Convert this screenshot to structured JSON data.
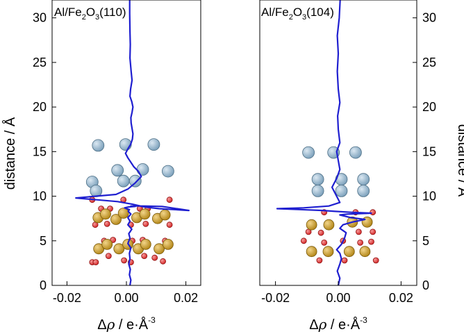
{
  "colors": {
    "curve": "#1f1fd0",
    "al_atom": "#7fa3bd",
    "fe_atom": "#b5891c",
    "o_atom": "#d62a2a"
  },
  "chart_data": [
    {
      "type": "line",
      "panel": "left",
      "title_parts": [
        "Al/Fe",
        "2",
        "O",
        "3",
        "(110)"
      ],
      "xlabel_parts": [
        "Δ",
        "ρ",
        " / e·Å",
        "-3"
      ],
      "ylabel": "distance / Å",
      "xlim": [
        -0.025,
        0.025
      ],
      "ylim": [
        0,
        32
      ],
      "xticks": [
        -0.02,
        0.0,
        0.02
      ],
      "xtick_labels": [
        "-0.02",
        "0.00",
        "0.02"
      ],
      "yticks": [
        0,
        5,
        10,
        15,
        20,
        25,
        30
      ],
      "ytick_labels": [
        "0",
        "5",
        "10",
        "15",
        "20",
        "25",
        "30"
      ],
      "ytick_side": "left",
      "series": [
        {
          "x": [
            0.0012,
            0.0015,
            0.001,
            0.0013,
            0.0008,
            0.0012,
            0.001,
            0.0015,
            0.0005,
            0.0012,
            0.0008,
            0.0018,
            0.0005,
            0.0012,
            0.0005,
            0.0015,
            0.0006,
            0.001,
            0.0,
            -0.0006,
            0.0008,
            0.003,
            0.0015,
            0.006,
            0.012,
            0.021,
            0.011,
            0.006,
            0.002,
            -0.003,
            -0.01,
            -0.017,
            -0.0035,
            0.0005,
            0.003,
            0.005,
            0.004,
            0.0025,
            0.0015,
            0.0005,
            -0.0003,
            0.0005,
            0.0014,
            0.002,
            0.0022,
            0.0019,
            0.0016,
            0.0015,
            0.0019,
            0.0022,
            0.0018,
            0.0012,
            0.0014,
            0.0019,
            0.0016,
            0.0012,
            0.0013,
            0.0012,
            0.0011,
            0.0011
          ],
          "y": [
            0.0,
            0.6,
            1.2,
            1.8,
            2.4,
            3.0,
            3.6,
            4.2,
            4.7,
            5.3,
            5.8,
            6.3,
            6.8,
            7.2,
            7.6,
            8.0,
            8.3,
            8.5,
            8.6,
            8.7,
            8.8,
            8.85,
            8.9,
            8.9,
            8.85,
            8.4,
            8.6,
            8.8,
            9.1,
            9.4,
            9.6,
            9.8,
            10.2,
            10.8,
            11.5,
            12.2,
            12.8,
            13.3,
            13.8,
            14.3,
            14.8,
            15.3,
            15.8,
            16.4,
            17.0,
            17.6,
            18.2,
            18.8,
            19.4,
            20.0,
            20.6,
            21.2,
            22.0,
            23.0,
            24.0,
            25.5,
            27.0,
            28.5,
            30.5,
            32.0
          ]
        }
      ],
      "atoms": {
        "Al": [
          [
            -0.0095,
            15.7
          ],
          [
            -0.0003,
            15.8
          ],
          [
            0.0092,
            15.8
          ],
          [
            -0.003,
            12.9
          ],
          [
            0.0055,
            13.0
          ],
          [
            0.014,
            12.8
          ],
          [
            -0.0115,
            11.6
          ],
          [
            -0.0102,
            10.6
          ],
          [
            -0.001,
            11.7
          ],
          [
            0.003,
            11.7
          ]
        ],
        "Fe": [
          [
            -0.0095,
            7.6
          ],
          [
            -0.007,
            8.0
          ],
          [
            -0.0035,
            7.4
          ],
          [
            -0.001,
            8.1
          ],
          [
            0.0035,
            7.6
          ],
          [
            0.0062,
            8.0
          ],
          [
            0.0105,
            7.5
          ],
          [
            0.013,
            7.9
          ],
          [
            -0.0093,
            4.1
          ],
          [
            -0.0065,
            4.6
          ],
          [
            -0.0025,
            4.1
          ],
          [
            0.0005,
            4.6
          ],
          [
            0.004,
            4.1
          ],
          [
            0.0065,
            4.6
          ],
          [
            0.011,
            4.1
          ],
          [
            0.014,
            4.6
          ]
        ],
        "O": [
          [
            -0.0115,
            9.6
          ],
          [
            -0.0085,
            8.6
          ],
          [
            -0.0055,
            8.6
          ],
          [
            -0.001,
            9.6
          ],
          [
            0.0045,
            8.6
          ],
          [
            0.0072,
            8.6
          ],
          [
            0.0145,
            9.6
          ],
          [
            -0.0105,
            6.8
          ],
          [
            -0.0065,
            6.9
          ],
          [
            0.0015,
            6.8
          ],
          [
            0.0065,
            6.9
          ],
          [
            0.0145,
            6.8
          ],
          [
            -0.0075,
            5.0
          ],
          [
            -0.0045,
            5.1
          ],
          [
            0.002,
            5.0
          ],
          [
            0.0055,
            5.1
          ],
          [
            0.013,
            5.0
          ],
          [
            -0.0115,
            2.6
          ],
          [
            -0.0103,
            2.6
          ],
          [
            -0.006,
            3.3
          ],
          [
            -0.0008,
            2.8
          ],
          [
            0.0015,
            2.6
          ],
          [
            0.006,
            3.3
          ],
          [
            0.0095,
            3.1
          ],
          [
            0.0123,
            2.7
          ]
        ]
      }
    },
    {
      "type": "line",
      "panel": "right",
      "title_parts": [
        "Al/Fe",
        "2",
        "O",
        "3",
        "(104)"
      ],
      "xlabel_parts": [
        "Δ",
        "ρ",
        " / e·Å",
        "-3"
      ],
      "ylabel": "distance / Å",
      "xlim": [
        -0.025,
        0.025
      ],
      "ylim": [
        0,
        32
      ],
      "xticks": [
        -0.02,
        0.0,
        0.02
      ],
      "xtick_labels": [
        "-0.02",
        "0.00",
        "0.02"
      ],
      "yticks": [
        0,
        5,
        10,
        15,
        20,
        25,
        30
      ],
      "ytick_labels": [
        "0",
        "5",
        "10",
        "15",
        "20",
        "25",
        "30"
      ],
      "ytick_side": "right",
      "series": [
        {
          "x": [
            0.0,
            0.0005,
            -0.0003,
            0.0005,
            0.001,
            0.0005,
            -0.0005,
            0.001,
            0.002,
            0.0025,
            0.0005,
            0.0015,
            0.0045,
            0.0085,
            0.004,
            0.0005,
            0.003,
            0.0105,
            0.004,
            -0.001,
            -0.005,
            -0.012,
            -0.0195,
            -0.011,
            -0.003,
            0.0005,
            -0.0005,
            -0.002,
            -0.0005,
            0.0005,
            0.0,
            -0.0005,
            0.0005,
            0.0,
            -0.0002,
            0.0005,
            0.0,
            -0.0003,
            0.0,
            -0.0003,
            0.0003,
            0.0006
          ],
          "y": [
            0.0,
            0.8,
            1.6,
            2.4,
            3.0,
            3.6,
            4.0,
            4.6,
            5.3,
            5.9,
            6.4,
            6.8,
            7.1,
            7.4,
            7.6,
            7.9,
            8.0,
            8.1,
            8.2,
            8.3,
            8.4,
            8.5,
            8.6,
            8.7,
            8.9,
            9.3,
            10.0,
            11.0,
            12.0,
            13.0,
            14.0,
            15.0,
            16.0,
            17.5,
            19.0,
            20.5,
            22.0,
            24.0,
            26.0,
            28.0,
            30.0,
            32.0
          ]
        }
      ],
      "atoms": {
        "Al": [
          [
            -0.0095,
            14.9
          ],
          [
            -0.0015,
            14.9
          ],
          [
            0.0055,
            14.9
          ],
          [
            -0.0065,
            11.9
          ],
          [
            0.001,
            11.9
          ],
          [
            0.008,
            11.9
          ],
          [
            -0.0065,
            10.6
          ],
          [
            0.001,
            10.6
          ],
          [
            0.008,
            10.6
          ]
        ],
        "Fe": [
          [
            -0.0085,
            6.8
          ],
          [
            -0.003,
            6.8
          ],
          [
            0.0045,
            7.1
          ],
          [
            0.0092,
            7.1
          ],
          [
            -0.0085,
            3.8
          ],
          [
            -0.0032,
            3.8
          ],
          [
            0.0035,
            3.8
          ],
          [
            0.0085,
            3.8
          ]
        ],
        "O": [
          [
            -0.0045,
            8.2
          ],
          [
            0.0055,
            8.2
          ],
          [
            0.011,
            8.2
          ],
          [
            -0.0095,
            6.0
          ],
          [
            -0.0055,
            5.9
          ],
          [
            0.0065,
            6.0
          ],
          [
            0.011,
            6.0
          ],
          [
            -0.011,
            5.0
          ],
          [
            -0.0045,
            4.8
          ],
          [
            0.0015,
            5.0
          ],
          [
            0.007,
            4.8
          ],
          [
            0.0105,
            4.9
          ],
          [
            -0.006,
            2.8
          ],
          [
            0.002,
            2.8
          ],
          [
            0.012,
            2.8
          ]
        ]
      }
    }
  ]
}
